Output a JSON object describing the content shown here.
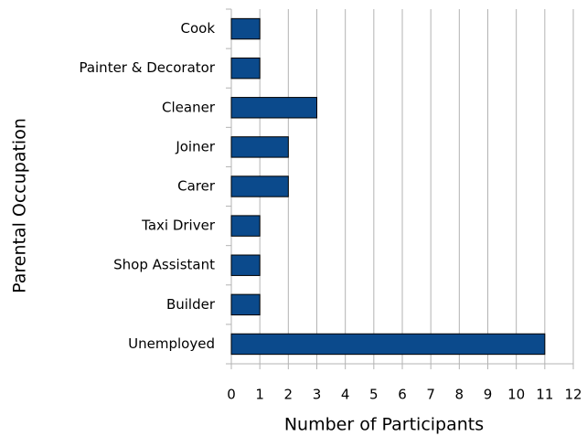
{
  "chart_data": {
    "type": "bar",
    "orientation": "horizontal",
    "xlabel": "Number of Participants",
    "ylabel": "Parental Occupation",
    "categories": [
      "Cook",
      "Painter & Decorator",
      "Cleaner",
      "Joiner",
      "Carer",
      "Taxi Driver",
      "Shop Assistant",
      "Builder",
      "Unemployed"
    ],
    "values": [
      1,
      1,
      3,
      2,
      2,
      1,
      1,
      1,
      11
    ],
    "color": "#0b4a8c",
    "xlim": [
      0,
      12
    ],
    "xticks": [
      0,
      1,
      2,
      3,
      4,
      5,
      6,
      7,
      8,
      9,
      10,
      11,
      12
    ],
    "grid": true
  }
}
